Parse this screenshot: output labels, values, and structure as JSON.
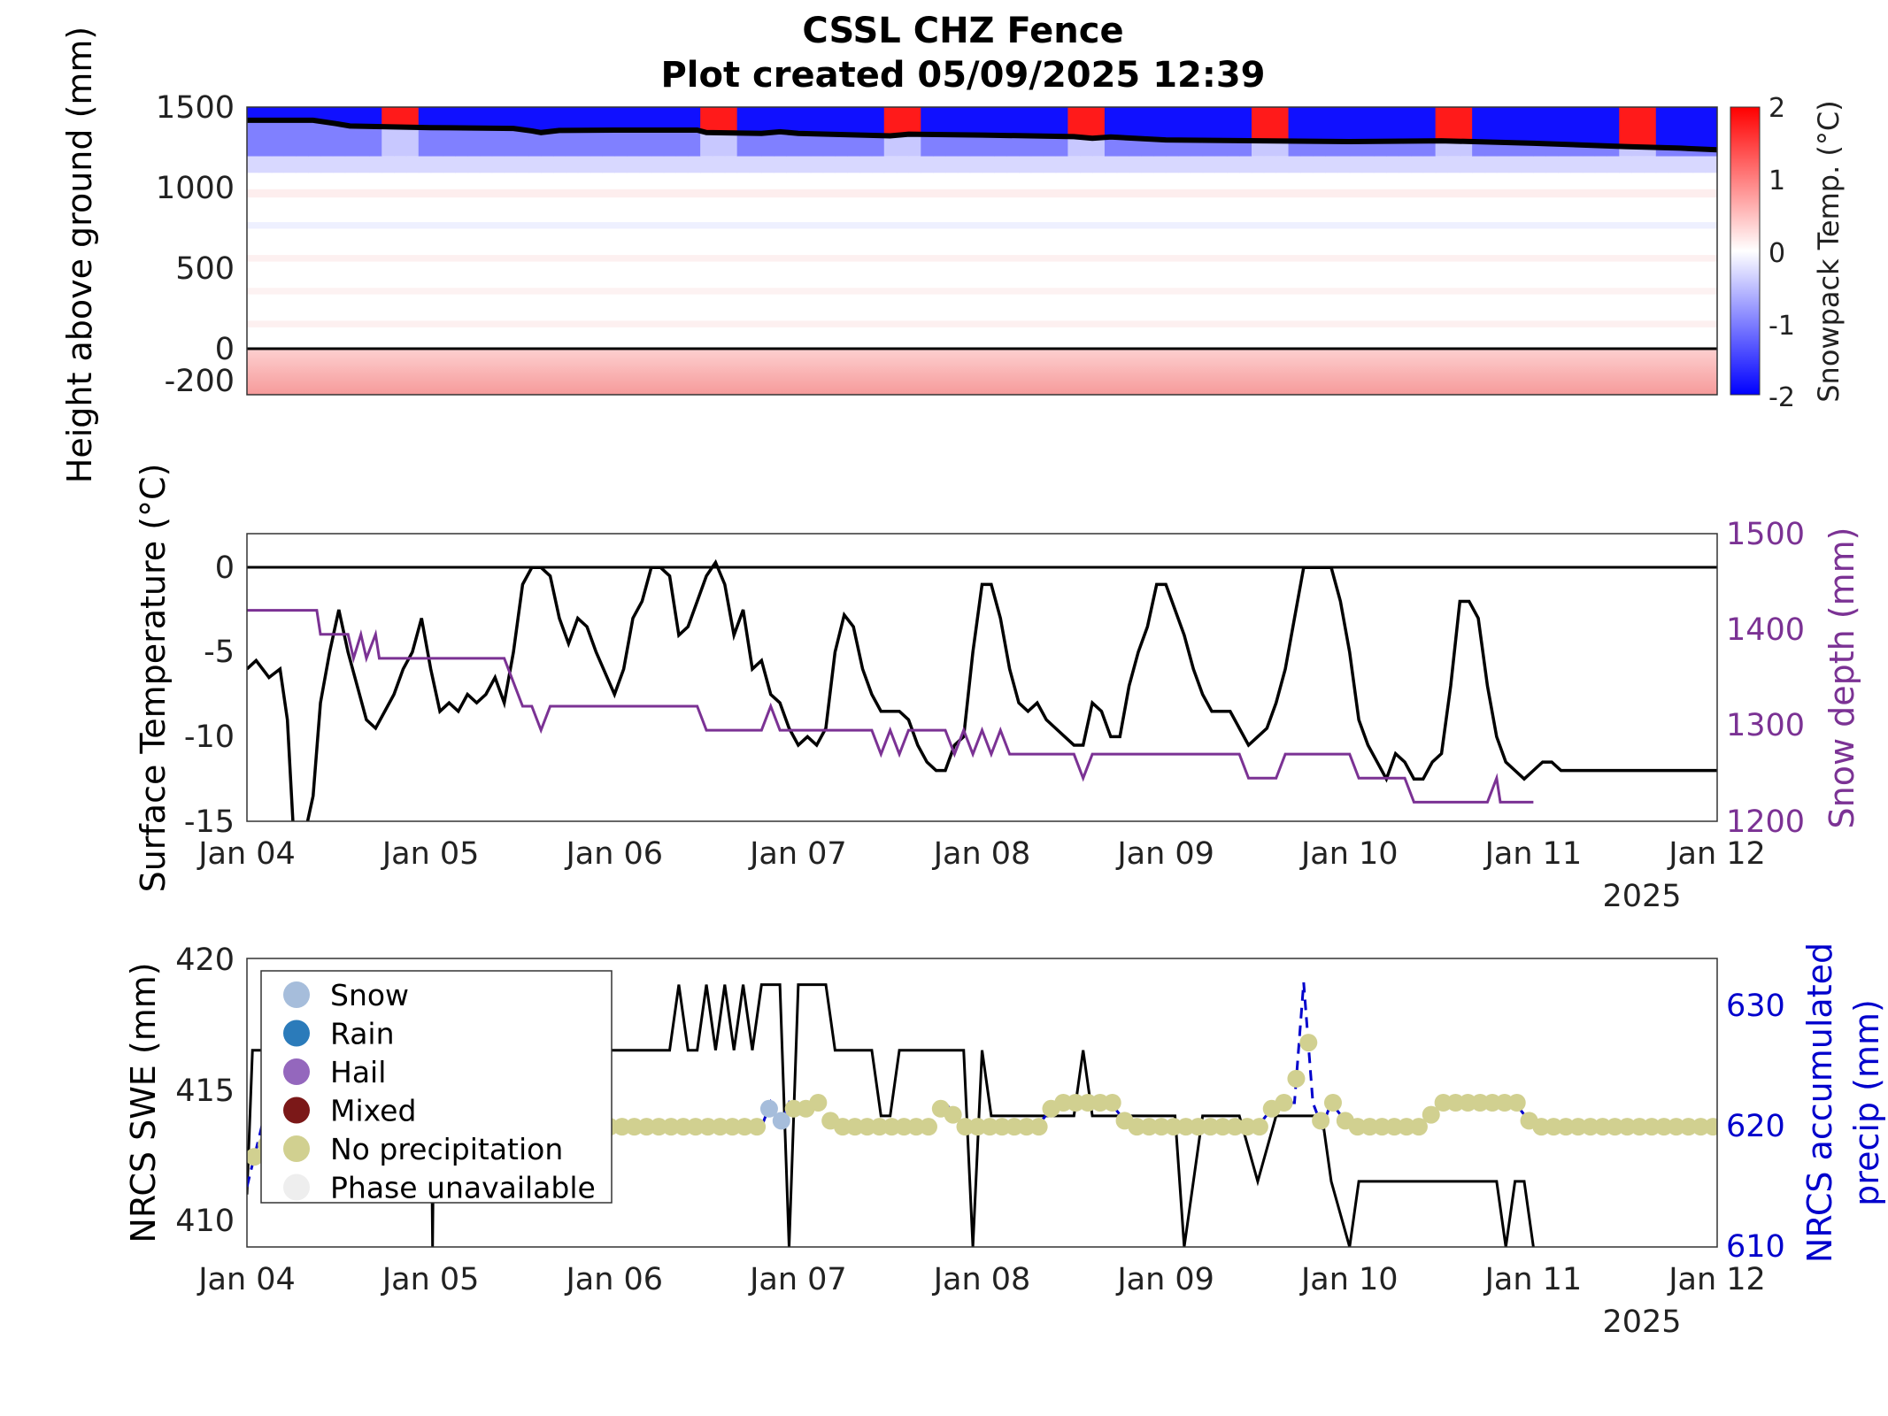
{
  "title_line1": "CSSL CHZ Fence",
  "title_line2": "Plot created 05/09/2025 12:39",
  "chart_data": [
    {
      "type": "heatmap",
      "ylabel": "Height above ground (mm)",
      "ylim": [
        -250,
        1500
      ],
      "yticks": [
        "1500",
        "1000",
        "500",
        "0",
        "-200"
      ],
      "colorbar": {
        "label": "Snowpack Temp. (°C)",
        "range": [
          -2,
          2
        ],
        "ticks": [
          "2",
          "1",
          "0",
          "-1",
          "-2"
        ]
      },
      "snow_depth_line_mm": [
        [
          0,
          1420
        ],
        [
          0.36,
          1420
        ],
        [
          0.48,
          1400
        ],
        [
          0.56,
          1385
        ],
        [
          1.0,
          1375
        ],
        [
          1.45,
          1370
        ],
        [
          1.55,
          1355
        ],
        [
          1.6,
          1345
        ],
        [
          1.7,
          1358
        ],
        [
          2.0,
          1360
        ],
        [
          2.45,
          1360
        ],
        [
          2.5,
          1345
        ],
        [
          2.8,
          1340
        ],
        [
          2.9,
          1350
        ],
        [
          3.0,
          1340
        ],
        [
          3.5,
          1325
        ],
        [
          3.6,
          1335
        ],
        [
          4.0,
          1330
        ],
        [
          4.5,
          1320
        ],
        [
          4.6,
          1310
        ],
        [
          4.7,
          1318
        ],
        [
          5.0,
          1300
        ],
        [
          6.0,
          1290
        ],
        [
          6.5,
          1295
        ],
        [
          7.0,
          1280
        ],
        [
          7.5,
          1260
        ],
        [
          7.8,
          1250
        ],
        [
          8.0,
          1240
        ]
      ],
      "snow_depth_color": "#000000"
    },
    {
      "type": "line",
      "ylabel": "Surface Temperature (°C)",
      "ylabel_right": "Snow depth (mm)",
      "ylim": [
        -15,
        2
      ],
      "ylim_right": [
        1200,
        1500
      ],
      "yticks": [
        "0",
        "-5",
        "-10",
        "-15"
      ],
      "yticks_right": [
        "1500",
        "1400",
        "1300",
        "1200"
      ],
      "xticks": [
        "Jan 04",
        "Jan 05",
        "Jan 06",
        "Jan 07",
        "Jan 08",
        "Jan 09",
        "Jan 10",
        "Jan 11",
        "Jan 12"
      ],
      "year_label": "2025",
      "series": [
        {
          "color": "#000000",
          "x": [
            0,
            0.05,
            0.12,
            0.18,
            0.22,
            0.25,
            0.3,
            0.33,
            0.36,
            0.4,
            0.45,
            0.5,
            0.55,
            0.6,
            0.65,
            0.7,
            0.75,
            0.8,
            0.85,
            0.9,
            0.95,
            1.0,
            1.05,
            1.1,
            1.15,
            1.2,
            1.25,
            1.3,
            1.35,
            1.4,
            1.45,
            1.5,
            1.55,
            1.6,
            1.65,
            1.7,
            1.75,
            1.8,
            1.85,
            1.9,
            2.0,
            2.05,
            2.1,
            2.15,
            2.2,
            2.25,
            2.3,
            2.35,
            2.4,
            2.45,
            2.5,
            2.55,
            2.6,
            2.65,
            2.7,
            2.75,
            2.8,
            2.85,
            2.9,
            2.95,
            3.0,
            3.05,
            3.1,
            3.15,
            3.2,
            3.25,
            3.3,
            3.35,
            3.4,
            3.45,
            3.5,
            3.55,
            3.6,
            3.65,
            3.7,
            3.75,
            3.8,
            3.85,
            3.9,
            3.95,
            4.0,
            4.05,
            4.1,
            4.15,
            4.2,
            4.25,
            4.3,
            4.35,
            4.4,
            4.45,
            4.5,
            4.55,
            4.6,
            4.65,
            4.7,
            4.75,
            4.8,
            4.85,
            4.9,
            4.95,
            5.0,
            5.05,
            5.1,
            5.15,
            5.2,
            5.25,
            5.3,
            5.35,
            5.4,
            5.45,
            5.5,
            5.55,
            5.6,
            5.65,
            5.7,
            5.75,
            5.8,
            5.85,
            5.9,
            5.95,
            6.0,
            6.05,
            6.1,
            6.15,
            6.2,
            6.25,
            6.3,
            6.35,
            6.4,
            6.45,
            6.5,
            6.55,
            6.6,
            6.65,
            6.7,
            6.75,
            6.8,
            6.85,
            6.9,
            6.95,
            7.0,
            7.05,
            7.1,
            7.15,
            7.2,
            7.25,
            7.3,
            7.35,
            7.4,
            7.45,
            7.5,
            7.55,
            7.6,
            7.65,
            7.7,
            7.75,
            7.8,
            7.85,
            7.9,
            7.95,
            8.0
          ],
          "y": [
            -6,
            -5.5,
            -6.5,
            -6,
            -9,
            -15,
            -15.5,
            -15,
            -13.5,
            -8,
            -5,
            -2.5,
            -5,
            -7,
            -9,
            -9.5,
            -8.5,
            -7.5,
            -6,
            -5,
            -3,
            -6,
            -8.5,
            -8,
            -8.5,
            -7.5,
            -8,
            -7.5,
            -6.5,
            -8,
            -5,
            -1,
            0,
            0,
            -0.5,
            -3,
            -4.5,
            -3,
            -3.5,
            -5,
            -7.5,
            -6,
            -3,
            -2,
            0,
            0,
            -0.5,
            -4,
            -3.5,
            -2,
            -0.5,
            0.3,
            -1,
            -4,
            -2.5,
            -6,
            -5.5,
            -7.5,
            -8,
            -9.5,
            -10.5,
            -10,
            -10.5,
            -9.5,
            -5,
            -2.8,
            -3.5,
            -6,
            -7.5,
            -8.5,
            -8.5,
            -8.5,
            -9,
            -10.5,
            -11.5,
            -12,
            -12,
            -10.5,
            -10,
            -5,
            -1,
            -1,
            -3,
            -6,
            -8,
            -8.5,
            -8,
            -9,
            -9.5,
            -10,
            -10.5,
            -10.5,
            -8,
            -8.5,
            -10,
            -10,
            -7,
            -5,
            -3.5,
            -1,
            -1,
            -2.5,
            -4,
            -6,
            -7.5,
            -8.5,
            -8.5,
            -8.5,
            -9.5,
            -10.5,
            -10,
            -9.5,
            -8,
            -6,
            -3,
            0,
            0,
            0,
            0,
            -2,
            -5,
            -9,
            -10.5,
            -11.5,
            -12.5,
            -11,
            -11.5,
            -12.5,
            -12.5,
            -11.5,
            -11,
            -7,
            -2,
            -2,
            -3,
            -7,
            -10,
            -11.5,
            -12,
            -12.5,
            -12,
            -11.5,
            -11.5,
            -12,
            -12,
            -12,
            -12,
            -12,
            -12,
            -12,
            -12,
            -12,
            -12,
            -12,
            -12,
            -12,
            -12,
            -12,
            -12,
            -12,
            -12
          ]
        },
        {
          "color": "#7b3294",
          "axis": "right",
          "x": [
            0,
            0.38,
            0.4,
            0.55,
            0.58,
            0.62,
            0.65,
            0.7,
            0.72,
            0.75,
            0.78,
            1.0,
            1.2,
            1.4,
            1.45,
            1.5,
            1.55,
            1.6,
            1.65,
            1.7,
            1.75,
            2.0,
            2.3,
            2.45,
            2.5,
            2.8,
            2.85,
            2.9,
            3.0,
            3.3,
            3.4,
            3.45,
            3.5,
            3.55,
            3.6,
            3.65,
            3.8,
            3.85,
            3.9,
            3.95,
            4.0,
            4.05,
            4.1,
            4.15,
            4.2,
            4.5,
            4.55,
            4.6,
            4.65,
            4.7,
            5.0,
            5.2,
            5.4,
            5.45,
            5.6,
            5.65,
            5.7,
            6.0,
            6.05,
            6.3,
            6.35,
            6.4,
            6.75,
            6.8,
            6.82,
            7.0
          ],
          "y": [
            1420,
            1420,
            1395,
            1395,
            1370,
            1395,
            1370,
            1395,
            1370,
            1370,
            1370,
            1370,
            1370,
            1370,
            1345,
            1320,
            1320,
            1295,
            1320,
            1320,
            1320,
            1320,
            1320,
            1320,
            1295,
            1295,
            1320,
            1295,
            1295,
            1295,
            1295,
            1270,
            1295,
            1270,
            1295,
            1295,
            1295,
            1270,
            1295,
            1270,
            1295,
            1270,
            1295,
            1270,
            1270,
            1270,
            1245,
            1270,
            1270,
            1270,
            1270,
            1270,
            1270,
            1245,
            1245,
            1270,
            1270,
            1270,
            1245,
            1245,
            1220,
            1220,
            1220,
            1245,
            1220,
            1220
          ]
        }
      ]
    },
    {
      "type": "line",
      "ylabel": "NRCS SWE (mm)",
      "ylabel_right": "NRCS accumulated precip (mm)",
      "ylim": [
        409,
        420
      ],
      "ylim_right": [
        610,
        634
      ],
      "yticks": [
        "420",
        "415",
        "410"
      ],
      "yticks_right": [
        "630",
        "620",
        "610"
      ],
      "xticks": [
        "Jan 04",
        "Jan 05",
        "Jan 06",
        "Jan 07",
        "Jan 08",
        "Jan 09",
        "Jan 10",
        "Jan 11",
        "Jan 12"
      ],
      "year_label": "2025",
      "legend": [
        "Snow",
        "Rain",
        "Hail",
        "Mixed",
        "No precipitation",
        "Phase unavailable"
      ],
      "legend_colors": [
        "#a6bddb",
        "#2b7bba",
        "#9467bd",
        "#7b1818",
        "#d1d090",
        "#eeeeee"
      ],
      "swe_series": {
        "color": "#000000",
        "x": [
          0,
          0.03,
          0.06,
          0.9,
          1.0,
          1.01,
          1.02,
          1.9,
          2.0,
          2.05,
          2.1,
          2.3,
          2.35,
          2.4,
          2.45,
          2.5,
          2.55,
          2.6,
          2.65,
          2.7,
          2.75,
          2.8,
          2.85,
          2.9,
          2.95,
          3.0,
          3.05,
          3.15,
          3.2,
          3.3,
          3.4,
          3.45,
          3.5,
          3.55,
          3.9,
          3.95,
          4.0,
          4.05,
          4.1,
          4.5,
          4.55,
          4.6,
          5.0,
          5.05,
          5.1,
          5.2,
          5.3,
          5.4,
          5.5,
          5.6,
          5.8,
          5.85,
          5.9,
          6.0,
          6.05,
          6.5,
          6.8,
          6.85,
          6.9,
          6.95,
          7.0
        ],
        "y": [
          411,
          416.5,
          416.5,
          416.5,
          416.5,
          409,
          416.5,
          416.5,
          416.5,
          416.5,
          416.5,
          416.5,
          419,
          416.5,
          416.5,
          419,
          416.5,
          419,
          416.5,
          419,
          416.5,
          419,
          419,
          419,
          409,
          419,
          419,
          419,
          416.5,
          416.5,
          416.5,
          414,
          414,
          416.5,
          416.5,
          409,
          416.5,
          414,
          414,
          414,
          416.5,
          414,
          414,
          414,
          409,
          414,
          414,
          414,
          411.5,
          414,
          414,
          414,
          411.5,
          409,
          411.5,
          411.5,
          411.5,
          409,
          411.5,
          411.5,
          409
        ]
      },
      "precip_series": {
        "color": "#0000cc",
        "x": [
          0,
          0.08,
          0.12,
          0.16,
          0.2,
          0.3,
          0.4,
          0.5,
          0.6,
          0.7,
          0.8,
          0.9,
          1.0,
          1.1,
          1.2,
          1.3,
          1.4,
          1.5,
          1.6,
          1.7,
          1.8,
          1.9,
          2.0,
          2.1,
          2.2,
          2.3,
          2.4,
          2.5,
          2.6,
          2.7,
          2.8,
          2.85,
          2.9,
          2.95,
          3.0,
          3.1,
          3.2,
          3.3,
          3.4,
          3.5,
          3.6,
          3.7,
          3.8,
          3.9,
          4.0,
          4.1,
          4.2,
          4.3,
          4.4,
          4.5,
          4.6,
          4.7,
          4.8,
          4.9,
          5.0,
          5.1,
          5.2,
          5.3,
          5.4,
          5.5,
          5.6,
          5.7,
          5.75,
          5.8,
          5.85,
          5.9,
          6.0,
          6.1,
          6.2,
          6.3,
          6.4,
          6.5,
          6.6,
          6.7,
          6.8,
          6.9,
          7.0,
          7.1,
          7.2,
          7.3,
          7.4,
          7.5,
          7.6,
          7.7,
          7.8,
          7.9,
          8.0
        ],
        "y": [
          615,
          620,
          618,
          620,
          620,
          620,
          620,
          620,
          620,
          620,
          620,
          620,
          620,
          620,
          620,
          620,
          620,
          620,
          620,
          620,
          620,
          620,
          620,
          620,
          620,
          620,
          620,
          620,
          620,
          620,
          620,
          622,
          620,
          622,
          621,
          622,
          620,
          620,
          620,
          620,
          620,
          620,
          622,
          620,
          620,
          620,
          620,
          620,
          622,
          622,
          622,
          622,
          620,
          620,
          620,
          620,
          620,
          620,
          620,
          620,
          622,
          622,
          632,
          622,
          620,
          622,
          620,
          620,
          620,
          620,
          620,
          622,
          622,
          622,
          622,
          622,
          620,
          620,
          620,
          620,
          620,
          620,
          620,
          620,
          620,
          620,
          620
        ]
      }
    }
  ]
}
